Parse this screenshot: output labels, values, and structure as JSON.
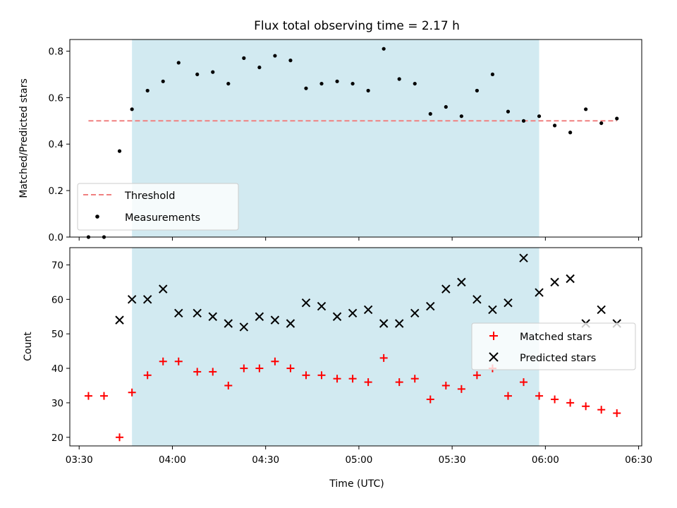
{
  "title": "Flux total observing time = 2.17 h",
  "x_axis_label": "Time (UTC)",
  "x_ticks": [
    "03:30",
    "04:00",
    "04:30",
    "05:00",
    "05:30",
    "06:00",
    "06:30"
  ],
  "top_ylabel": "Matched/Predicted stars",
  "bottom_ylabel": "Count",
  "top_yticks": [
    "0.0",
    "0.2",
    "0.4",
    "0.6",
    "0.8"
  ],
  "bottom_yticks": [
    "20",
    "30",
    "40",
    "50",
    "60",
    "70"
  ],
  "legend_top": {
    "threshold": "Threshold",
    "measurements": "Measurements"
  },
  "legend_bottom": {
    "matched": "Matched stars",
    "predicted": "Predicted stars"
  },
  "colors": {
    "shade": "#add8e6",
    "threshold": "#f08080",
    "matched": "#ff0000",
    "predicted": "#000000",
    "measurements": "#000000"
  },
  "chart_data": [
    {
      "type": "scatter",
      "title": "Flux total observing time = 2.17 h",
      "xlabel": "Time (UTC)",
      "ylabel": "Matched/Predicted stars",
      "xlim": [
        "03:27",
        "06:31"
      ],
      "ylim": [
        0,
        0.85
      ],
      "shaded_interval": [
        "03:47",
        "05:58"
      ],
      "threshold": 0.5,
      "x": [
        "03:33",
        "03:38",
        "03:43",
        "03:47",
        "03:52",
        "03:57",
        "04:02",
        "04:08",
        "04:13",
        "04:18",
        "04:23",
        "04:28",
        "04:33",
        "04:38",
        "04:43",
        "04:48",
        "04:53",
        "04:58",
        "05:03",
        "05:08",
        "05:13",
        "05:18",
        "05:23",
        "05:28",
        "05:33",
        "05:38",
        "05:43",
        "05:48",
        "05:53",
        "05:58",
        "06:03",
        "06:08",
        "06:13",
        "06:18",
        "06:23"
      ],
      "series": [
        {
          "name": "Measurements",
          "values": [
            0.0,
            0.0,
            0.37,
            0.55,
            0.63,
            0.67,
            0.75,
            0.7,
            0.71,
            0.66,
            0.77,
            0.73,
            0.78,
            0.76,
            0.64,
            0.66,
            0.67,
            0.66,
            0.63,
            0.81,
            0.68,
            0.66,
            0.53,
            0.56,
            0.52,
            0.63,
            0.7,
            0.54,
            0.5,
            0.52,
            0.48,
            0.45,
            0.55,
            0.49,
            0.51
          ]
        },
        {
          "name": "Threshold",
          "values": [
            0.5,
            0.5
          ]
        }
      ]
    },
    {
      "type": "scatter",
      "xlabel": "Time (UTC)",
      "ylabel": "Count",
      "xlim": [
        "03:27",
        "06:31"
      ],
      "ylim": [
        17.5,
        75
      ],
      "shaded_interval": [
        "03:47",
        "05:58"
      ],
      "x": [
        "03:33",
        "03:38",
        "03:43",
        "03:47",
        "03:52",
        "03:57",
        "04:02",
        "04:08",
        "04:13",
        "04:18",
        "04:23",
        "04:28",
        "04:33",
        "04:38",
        "04:43",
        "04:48",
        "04:53",
        "04:58",
        "05:03",
        "05:08",
        "05:13",
        "05:18",
        "05:23",
        "05:28",
        "05:33",
        "05:38",
        "05:43",
        "05:48",
        "05:53",
        "05:58",
        "06:03",
        "06:08",
        "06:13",
        "06:18",
        "06:23"
      ],
      "series": [
        {
          "name": "Matched stars",
          "values": [
            32,
            32,
            20,
            33,
            38,
            42,
            42,
            39,
            39,
            35,
            40,
            40,
            42,
            40,
            38,
            38,
            37,
            37,
            36,
            43,
            36,
            37,
            31,
            35,
            34,
            38,
            40,
            32,
            36,
            32,
            31,
            30,
            29,
            28,
            27
          ]
        },
        {
          "name": "Predicted stars",
          "values": [
            null,
            null,
            54,
            60,
            60,
            63,
            56,
            56,
            55,
            53,
            52,
            55,
            54,
            53,
            59,
            58,
            55,
            56,
            57,
            53,
            53,
            56,
            58,
            63,
            65,
            60,
            57,
            59,
            72,
            62,
            65,
            66,
            53,
            57,
            53
          ]
        }
      ]
    }
  ]
}
